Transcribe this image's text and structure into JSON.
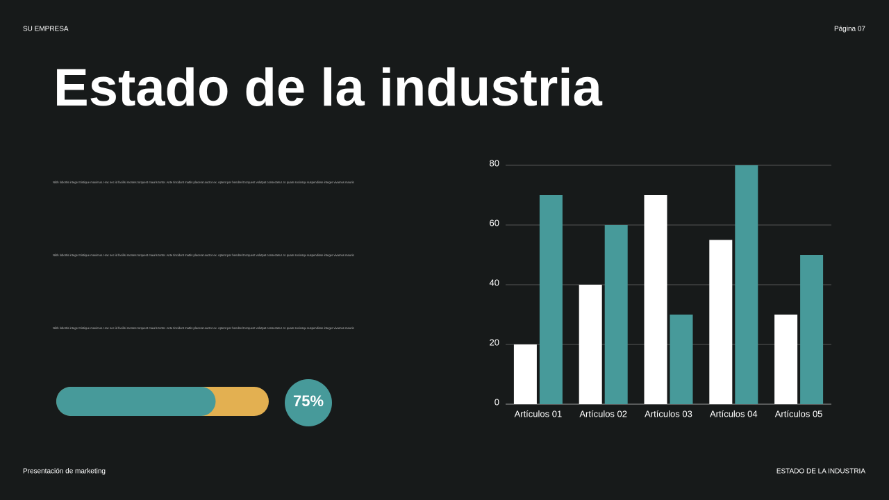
{
  "header": {
    "company": "SU EMPRESA",
    "page": "Página 07"
  },
  "title": "Estado de la industria",
  "paragraphs": [
    "Nibh lobortis integer tristique maximus. Hac nec id facilisi montes torquent mauris tortor. Ante tincidunt mattis placerat auctor ex. Aptent per hendrerit torquent volutpat consectetur. In quam sociosqu suspendisse integer vivamus mauris",
    "Nibh lobortis integer tristique maximus. Hac nec id facilisi montes torquent mauris tortor. Ante tincidunt mattis placerat auctor ex. Aptent per hendrerit torquent volutpat consectetur. In quam sociosqu suspendisse integer vivamus mauris",
    "Nibh lobortis integer tristique maximus. Hac nec id facilisi montes torquent mauris tortor. Ante tincidunt mattis placerat auctor ex. Aptent per hendrerit torquent volutpat consectetur. In quam sociosqu suspendisse integer vivamus mauris"
  ],
  "progress": {
    "value": 75,
    "value_label": "75%",
    "max": 100,
    "color": "#479a9a",
    "track_color": "#e3b051"
  },
  "chart_data": {
    "type": "bar",
    "categories": [
      "Artículos 01",
      "Artículos 02",
      "Artículos 03",
      "Artículos 04",
      "Artículos 05"
    ],
    "series": [
      {
        "color": "#ffffff",
        "values": [
          20,
          40,
          70,
          55,
          30
        ]
      },
      {
        "color": "#479a9a",
        "values": [
          70,
          60,
          30,
          80,
          50
        ]
      }
    ],
    "ylim": [
      0,
      80
    ],
    "yticks": [
      0,
      20,
      40,
      60,
      80
    ],
    "grid": true
  },
  "footer": {
    "left": "Presentación de marketing",
    "right": "ESTADO DE LA INDUSTRIA"
  }
}
